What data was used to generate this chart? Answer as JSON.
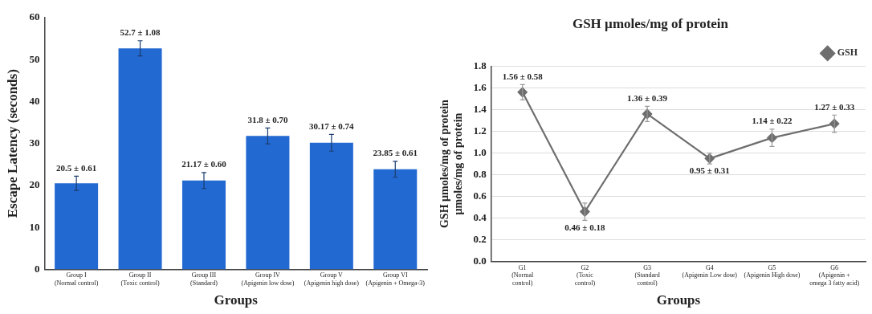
{
  "chart_data": [
    {
      "type": "bar",
      "xlabel": "Groups",
      "ylabel": "Escape Latency (seconds)",
      "categories": [
        "Group I\n(Normal control)",
        "Group II\n(Toxic control)",
        "Group III\n(Standard)",
        "Group IV\n(Apigenin low dose)",
        "Group V\n(Apigenin high dose)",
        "Group VI\n(Apigenin + Omega-3)"
      ],
      "values": [
        20.5,
        52.7,
        21.17,
        31.8,
        30.17,
        23.85
      ],
      "errors": [
        1.7,
        1.8,
        1.9,
        1.9,
        2,
        1.9
      ],
      "value_labels": [
        "20.5 ± 0.61",
        "52.7 ± 1.08",
        "21.17 ± 0.60",
        "31.8 ± 0.70",
        "30.17 ± 0.74",
        "23.85 ± 0.61"
      ],
      "color": "#2369d2",
      "ylim": [
        0,
        60
      ],
      "yticks": [
        0,
        10,
        20,
        30,
        40,
        50,
        60
      ],
      "grid": false,
      "legend": false
    },
    {
      "type": "line",
      "title": "GSH µmoles/mg of protein",
      "xlabel": "Groups",
      "ylabel": "GSH µmoles/mg of protein\nµmoles/mg of protein",
      "categories": [
        "G1\n(Normal\ncontrol)",
        "G2\n(Toxic\ncontrol)",
        "G3\n(Standard\ncontrol)",
        "G4\n(Apigenin Low dose)",
        "G5\n(Apigenin High dose)",
        "G6\n(Apigenin +\nomega 3 fatty acid)"
      ],
      "series": [
        {
          "name": "GSH",
          "color": "#6e6e6e",
          "values": [
            1.56,
            0.46,
            1.36,
            0.95,
            1.14,
            1.27
          ],
          "errors": [
            0.07,
            0.08,
            0.07,
            0.05,
            0.08,
            0.08
          ],
          "value_labels": [
            "1.56 ± 0.58",
            "0.46 ± 0.18",
            "1.36 ± 0.39",
            "0.95 ± 0.31",
            "1.14 ± 0.22",
            "1.27 ± 0.33"
          ]
        }
      ],
      "ylim": [
        0,
        1.8
      ],
      "yticks": [
        {
          "value": 0,
          "label": "0.0"
        },
        {
          "value": 0.2,
          "label": "0.2"
        },
        {
          "value": 0.4,
          "label": "0.4"
        },
        {
          "value": 0.6,
          "label": "0.6"
        },
        {
          "value": 0.8,
          "label": "0.8"
        },
        {
          "value": 1,
          "label": "1.0"
        },
        {
          "value": 1.2,
          "label": "1.2"
        },
        {
          "value": 1.4,
          "label": "1.4"
        },
        {
          "value": 1.6,
          "label": "1.6"
        },
        {
          "value": 1.8,
          "label": "1.8"
        }
      ],
      "grid": "y",
      "legend": "top right",
      "marker": "diamond",
      "line_style": "solid"
    }
  ]
}
